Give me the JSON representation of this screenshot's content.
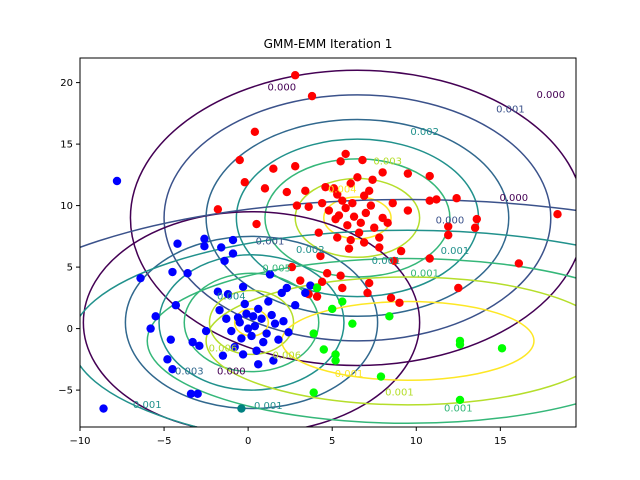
{
  "chart_data": {
    "type": "scatter",
    "title": "GMM-EMM Iteration 1",
    "xlabel": "",
    "ylabel": "",
    "xlim": [
      -10,
      19.5
    ],
    "ylim": [
      -8,
      22
    ],
    "xticks": [
      -10,
      -5,
      0,
      5,
      10,
      15
    ],
    "yticks": [
      -5,
      0,
      5,
      10,
      15,
      20
    ],
    "tick_labels_x": [
      "−10",
      "−5",
      "0",
      "5",
      "10",
      "15"
    ],
    "tick_labels_y": [
      "−5",
      "0",
      "5",
      "10",
      "15",
      "20"
    ],
    "grid": false,
    "series": [
      {
        "color": "#ff0000",
        "cluster_center": [
          6.5,
          8.5
        ],
        "points": [
          [
            2.8,
            20.6
          ],
          [
            3.8,
            18.9
          ],
          [
            0.4,
            16.0
          ],
          [
            -0.5,
            13.7
          ],
          [
            1.5,
            13.0
          ],
          [
            2.8,
            13.2
          ],
          [
            5.5,
            13.6
          ],
          [
            5.8,
            14.2
          ],
          [
            6.8,
            13.7
          ],
          [
            8.0,
            12.7
          ],
          [
            9.5,
            12.6
          ],
          [
            10.8,
            12.4
          ],
          [
            -0.2,
            11.9
          ],
          [
            1.0,
            11.4
          ],
          [
            2.3,
            11.1
          ],
          [
            3.4,
            11.2
          ],
          [
            4.6,
            11.5
          ],
          [
            12.4,
            10.6
          ],
          [
            11.2,
            10.5
          ],
          [
            -1.8,
            9.7
          ],
          [
            0.5,
            8.5
          ],
          [
            2.9,
            10.0
          ],
          [
            3.6,
            9.9
          ],
          [
            9.5,
            9.6
          ],
          [
            10.8,
            10.4
          ],
          [
            13.6,
            8.9
          ],
          [
            13.5,
            8.2
          ],
          [
            18.4,
            9.3
          ],
          [
            11.9,
            8.3
          ],
          [
            11.9,
            7.6
          ],
          [
            16.1,
            5.3
          ],
          [
            12.5,
            3.3
          ],
          [
            8.7,
            5.5
          ],
          [
            9.1,
            6.3
          ],
          [
            10.8,
            5.7
          ],
          [
            8.5,
            2.5
          ],
          [
            9.0,
            2.1
          ],
          [
            7.1,
            2.9
          ],
          [
            7.2,
            3.7
          ],
          [
            5.5,
            4.3
          ],
          [
            4.4,
            3.8
          ],
          [
            2.6,
            5.0
          ],
          [
            3.1,
            3.9
          ],
          [
            4.3,
            5.9
          ],
          [
            3.6,
            2.8
          ],
          [
            4.1,
            2.6
          ],
          [
            4.7,
            4.5
          ],
          [
            5.6,
            3.3
          ],
          [
            6.1,
            7.2
          ],
          [
            7.8,
            6.6
          ],
          [
            4.2,
            7.8
          ],
          [
            5.4,
            9.2
          ],
          [
            5.8,
            9.8
          ],
          [
            6.2,
            10.2
          ],
          [
            6.9,
            10.8
          ],
          [
            7.2,
            11.2
          ],
          [
            5.3,
            10.9
          ],
          [
            6.1,
            11.8
          ],
          [
            7.5,
            8.2
          ],
          [
            8.0,
            9.0
          ],
          [
            7.8,
            7.4
          ],
          [
            6.6,
            7.8
          ],
          [
            5.9,
            8.4
          ],
          [
            5.2,
            8.9
          ],
          [
            6.3,
            9.1
          ],
          [
            7.0,
            9.4
          ],
          [
            6.7,
            8.6
          ],
          [
            7.3,
            10.0
          ],
          [
            5.6,
            10.4
          ],
          [
            4.8,
            9.6
          ],
          [
            6.5,
            12.3
          ],
          [
            7.4,
            12.1
          ],
          [
            5.1,
            11.4
          ],
          [
            4.4,
            10.2
          ],
          [
            8.3,
            8.6
          ],
          [
            8.6,
            10.2
          ],
          [
            6.0,
            6.5
          ],
          [
            5.3,
            7.4
          ],
          [
            6.9,
            7.0
          ]
        ]
      },
      {
        "color": "#0000ff",
        "cluster_center": [
          0.2,
          0.4
        ],
        "points": [
          [
            -7.8,
            12.0
          ],
          [
            -6.4,
            4.1
          ],
          [
            -8.6,
            -6.5
          ],
          [
            -3.0,
            -5.3
          ],
          [
            -3.4,
            -5.3
          ],
          [
            -4.5,
            -3.3
          ],
          [
            -4.8,
            -2.5
          ],
          [
            -3.3,
            -1.1
          ],
          [
            -4.5,
            4.6
          ],
          [
            -3.6,
            4.5
          ],
          [
            -4.2,
            6.9
          ],
          [
            -4.6,
            -0.9
          ],
          [
            -5.8,
            0.0
          ],
          [
            -5.5,
            1.0
          ],
          [
            -4.3,
            1.9
          ],
          [
            -2.5,
            -0.2
          ],
          [
            -2.9,
            -1.4
          ],
          [
            -1.5,
            -2.2
          ],
          [
            -1.2,
            2.8
          ],
          [
            -0.3,
            3.4
          ],
          [
            -1.8,
            3.0
          ],
          [
            -1.4,
            5.5
          ],
          [
            -0.9,
            6.1
          ],
          [
            -1.6,
            6.6
          ],
          [
            -0.9,
            7.2
          ],
          [
            -2.6,
            7.3
          ],
          [
            -2.6,
            6.7
          ],
          [
            2.0,
            2.9
          ],
          [
            2.8,
            1.9
          ],
          [
            3.4,
            2.9
          ],
          [
            3.7,
            3.5
          ],
          [
            1.3,
            4.4
          ],
          [
            2.3,
            3.3
          ],
          [
            1.5,
            -2.6
          ],
          [
            0.6,
            -2.9
          ],
          [
            -0.3,
            -2.1
          ],
          [
            -0.6,
            0.9
          ],
          [
            0.4,
            0.2
          ],
          [
            0.2,
            -0.6
          ],
          [
            -0.1,
            1.2
          ],
          [
            0.8,
            0.8
          ],
          [
            1.1,
            -0.4
          ],
          [
            -0.4,
            -0.8
          ],
          [
            0.6,
            1.6
          ],
          [
            1.4,
            1.1
          ],
          [
            -1.0,
            -0.2
          ],
          [
            0.0,
            0.0
          ],
          [
            1.6,
            0.4
          ],
          [
            0.9,
            -1.1
          ],
          [
            -0.5,
            0.5
          ],
          [
            0.3,
            1.0
          ],
          [
            -1.3,
            0.8
          ],
          [
            1.8,
            -0.9
          ],
          [
            2.1,
            0.6
          ],
          [
            -0.8,
            -1.5
          ],
          [
            0.5,
            -1.8
          ],
          [
            1.2,
            2.2
          ],
          [
            -0.2,
            2.0
          ],
          [
            -1.7,
            1.5
          ],
          [
            2.4,
            -0.3
          ]
        ]
      },
      {
        "color": "#008080",
        "points": [
          [
            -0.4,
            -6.5
          ]
        ]
      },
      {
        "color": "#00ff00",
        "cluster_center": [
          9.5,
          -1.5
        ],
        "points": [
          [
            4.1,
            3.3
          ],
          [
            3.9,
            -0.4
          ],
          [
            5.6,
            2.2
          ],
          [
            8.4,
            1.0
          ],
          [
            5.2,
            -2.1
          ],
          [
            5.2,
            -2.6
          ],
          [
            4.5,
            -1.7
          ],
          [
            12.6,
            -1.0
          ],
          [
            12.6,
            -1.3
          ],
          [
            15.1,
            -1.6
          ],
          [
            12.6,
            -5.8
          ],
          [
            7.9,
            -3.9
          ],
          [
            3.9,
            -5.2
          ],
          [
            5.0,
            1.6
          ],
          [
            6.2,
            0.4
          ]
        ]
      }
    ],
    "contour_labels": [
      {
        "text": "0.000",
        "x": 2.0,
        "y": 19.6,
        "color": "#440154"
      },
      {
        "text": "0.000",
        "x": 18.0,
        "y": 19.0,
        "color": "#440154"
      },
      {
        "text": "0.001",
        "x": 15.6,
        "y": 17.8,
        "color": "#3b528b"
      },
      {
        "text": "0.002",
        "x": 10.5,
        "y": 16.0,
        "color": "#21918c"
      },
      {
        "text": "0.003",
        "x": 8.3,
        "y": 13.6,
        "color": "#b5de2b"
      },
      {
        "text": "0.004",
        "x": 5.6,
        "y": 11.3,
        "color": "#fde725"
      },
      {
        "text": "0.000",
        "x": 15.8,
        "y": 10.6,
        "color": "#440154"
      },
      {
        "text": "0.000",
        "x": 12.0,
        "y": 8.8,
        "color": "#3b528b"
      },
      {
        "text": "0.001",
        "x": 12.3,
        "y": 6.3,
        "color": "#21918c"
      },
      {
        "text": "0.001",
        "x": 10.5,
        "y": 4.5,
        "color": "#35b779"
      },
      {
        "text": "0.001",
        "x": 1.3,
        "y": 7.1,
        "color": "#3b528b"
      },
      {
        "text": "0.002",
        "x": 3.7,
        "y": 6.4,
        "color": "#21918c"
      },
      {
        "text": "0.005",
        "x": 1.7,
        "y": 4.9,
        "color": "#35b779"
      },
      {
        "text": "0.004",
        "x": -1.0,
        "y": 2.6,
        "color": "#21918c"
      },
      {
        "text": "0.006",
        "x": -1.5,
        "y": -1.6,
        "color": "#b5de2b"
      },
      {
        "text": "0.006",
        "x": 2.3,
        "y": -2.2,
        "color": "#b5de2b"
      },
      {
        "text": "0.003",
        "x": -3.5,
        "y": -3.5,
        "color": "#31688e"
      },
      {
        "text": "0.000",
        "x": -1.0,
        "y": -3.5,
        "color": "#440154"
      },
      {
        "text": "0.001",
        "x": -6.0,
        "y": -6.2,
        "color": "#21918c"
      },
      {
        "text": "0.001",
        "x": 1.2,
        "y": -6.3,
        "color": "#21918c"
      },
      {
        "text": "0.001",
        "x": 6.0,
        "y": -3.7,
        "color": "#fde725"
      },
      {
        "text": "0.001",
        "x": 9.0,
        "y": -5.2,
        "color": "#b5de2b"
      },
      {
        "text": "0.001",
        "x": 12.5,
        "y": -6.5,
        "color": "#35b779"
      },
      {
        "text": "0.001",
        "x": 8.2,
        "y": 5.5,
        "color": "#21918c"
      }
    ]
  }
}
